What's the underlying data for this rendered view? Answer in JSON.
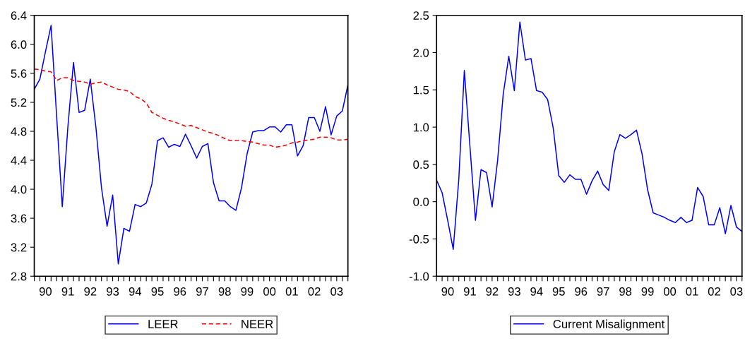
{
  "chart_data": [
    {
      "type": "line",
      "ylim": [
        2.8,
        6.4
      ],
      "categories": [
        null,
        null,
        "90",
        null,
        null,
        null,
        "91",
        null,
        null,
        null,
        "92",
        null,
        null,
        null,
        "93",
        null,
        null,
        null,
        "94",
        null,
        null,
        null,
        "95",
        null,
        null,
        null,
        "96",
        null,
        null,
        null,
        "97",
        null,
        null,
        null,
        "98",
        null,
        null,
        null,
        "99",
        null,
        null,
        null,
        "00",
        null,
        null,
        null,
        "01",
        null,
        null,
        null,
        "02",
        null,
        null,
        null,
        "03",
        null,
        null
      ],
      "yticks": [
        {
          "value": 2.8,
          "label": "2.8"
        },
        {
          "value": 3.2,
          "label": "3.2"
        },
        {
          "value": 3.6,
          "label": "3.6"
        },
        {
          "value": 4.0,
          "label": "4.0"
        },
        {
          "value": 4.4,
          "label": "4.4"
        },
        {
          "value": 4.8,
          "label": "4.8"
        },
        {
          "value": 5.2,
          "label": "5.2"
        },
        {
          "value": 5.6,
          "label": "5.6"
        },
        {
          "value": 6.0,
          "label": "6.0"
        },
        {
          "value": 6.4,
          "label": "6.4"
        }
      ],
      "grid": false,
      "legend": "bottom",
      "series": [
        {
          "name": "LEER",
          "color": "#0000ff",
          "line_style": "solid",
          "values": [
            5.38,
            5.52,
            5.9,
            6.26,
            5.0,
            3.76,
            4.86,
            5.75,
            5.06,
            5.09,
            5.52,
            4.86,
            4.02,
            3.49,
            3.92,
            2.97,
            3.46,
            3.42,
            3.79,
            3.76,
            3.81,
            4.07,
            4.67,
            4.71,
            4.58,
            4.62,
            4.59,
            4.76,
            4.6,
            4.43,
            4.59,
            4.63,
            4.09,
            3.84,
            3.84,
            3.76,
            3.71,
            4.02,
            4.49,
            4.79,
            4.81,
            4.81,
            4.86,
            4.86,
            4.79,
            4.89,
            4.89,
            4.46,
            4.6,
            4.99,
            4.99,
            4.8,
            5.14,
            4.75,
            5.01,
            5.08,
            5.44
          ]
        },
        {
          "name": "NEER",
          "color": "#ff0000",
          "line_style": "dashed",
          "values": [
            5.66,
            5.65,
            5.63,
            5.62,
            5.5,
            5.54,
            5.54,
            5.5,
            5.49,
            5.48,
            5.45,
            5.47,
            5.48,
            5.44,
            5.41,
            5.38,
            5.37,
            5.35,
            5.28,
            5.25,
            5.19,
            5.06,
            5.02,
            4.98,
            4.95,
            4.93,
            4.9,
            4.87,
            4.88,
            4.85,
            4.82,
            4.79,
            4.77,
            4.74,
            4.7,
            4.67,
            4.67,
            4.67,
            4.66,
            4.65,
            4.63,
            4.61,
            4.61,
            4.58,
            4.59,
            4.61,
            4.64,
            4.65,
            4.67,
            4.68,
            4.69,
            4.72,
            4.72,
            4.71,
            4.68,
            4.68,
            4.69
          ]
        }
      ]
    },
    {
      "type": "line",
      "ylim": [
        -1.0,
        2.5
      ],
      "categories": [
        null,
        null,
        "90",
        null,
        null,
        null,
        "91",
        null,
        null,
        null,
        "92",
        null,
        null,
        null,
        "93",
        null,
        null,
        null,
        "94",
        null,
        null,
        null,
        "95",
        null,
        null,
        null,
        "96",
        null,
        null,
        null,
        "97",
        null,
        null,
        null,
        "98",
        null,
        null,
        null,
        "99",
        null,
        null,
        null,
        "00",
        null,
        null,
        null,
        "01",
        null,
        null,
        null,
        "02",
        null,
        null,
        null,
        "03",
        null
      ],
      "yticks": [
        {
          "value": -1.0,
          "label": "-1.0"
        },
        {
          "value": -0.5,
          "label": "-0.5"
        },
        {
          "value": 0.0,
          "label": "0.0"
        },
        {
          "value": 0.5,
          "label": "0.5"
        },
        {
          "value": 1.0,
          "label": "1.0"
        },
        {
          "value": 1.5,
          "label": "1.5"
        },
        {
          "value": 2.0,
          "label": "2.0"
        },
        {
          "value": 2.5,
          "label": "2.5"
        }
      ],
      "grid": false,
      "legend": "bottom",
      "series": [
        {
          "name": "Current Misalignment",
          "color": "#0000ff",
          "line_style": "solid",
          "values": [
            0.29,
            0.12,
            -0.25,
            -0.64,
            0.3,
            1.76,
            0.75,
            -0.25,
            0.43,
            0.39,
            -0.07,
            0.56,
            1.44,
            1.95,
            1.49,
            2.41,
            1.9,
            1.92,
            1.49,
            1.47,
            1.37,
            0.99,
            0.35,
            0.26,
            0.36,
            0.3,
            0.3,
            0.1,
            0.28,
            0.41,
            0.23,
            0.15,
            0.67,
            0.9,
            0.85,
            0.9,
            0.96,
            0.64,
            0.16,
            -0.15,
            -0.18,
            -0.21,
            -0.25,
            -0.28,
            -0.21,
            -0.28,
            -0.25,
            0.19,
            0.07,
            -0.31,
            -0.31,
            -0.08,
            -0.43,
            -0.05,
            -0.34,
            -0.4
          ]
        }
      ]
    }
  ]
}
